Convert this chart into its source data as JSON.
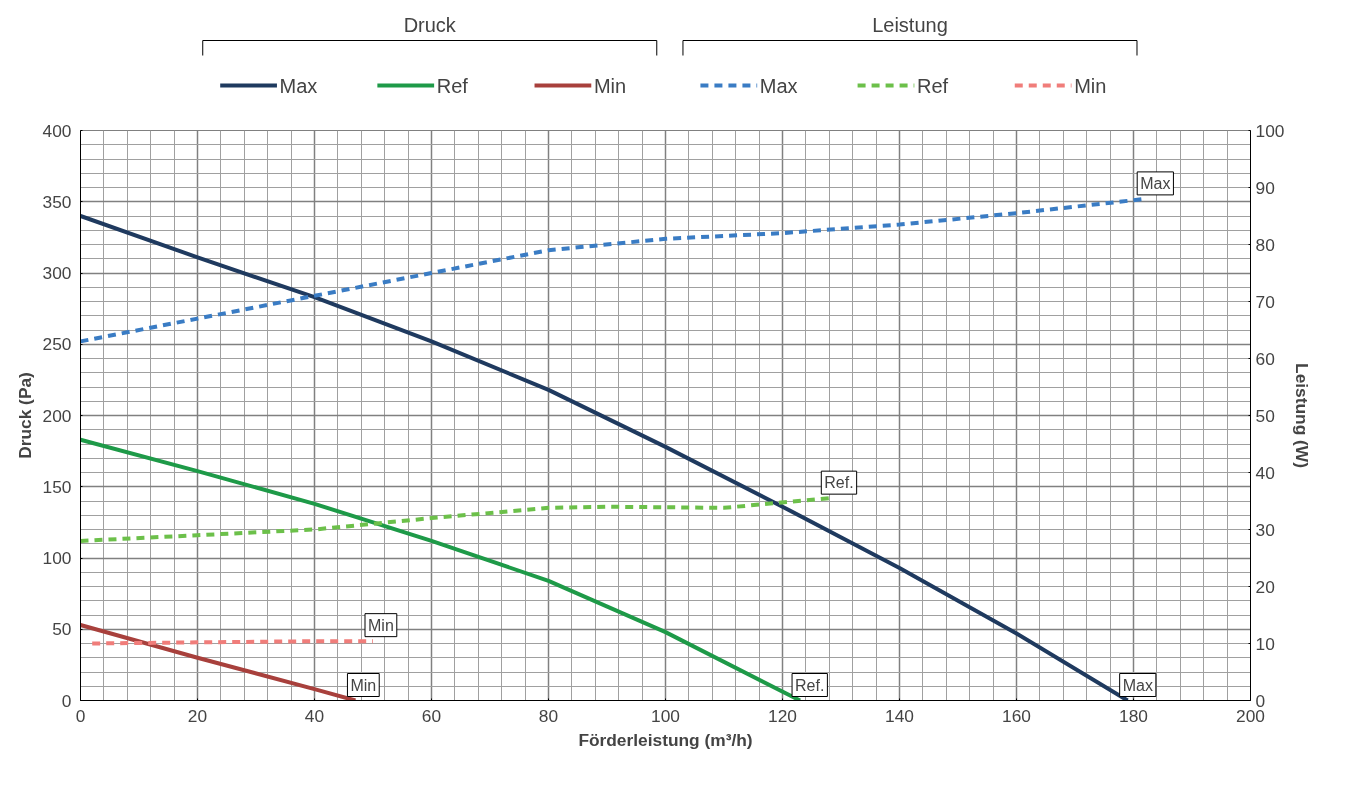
{
  "chart_data": {
    "type": "line",
    "xlabel": "Förderleistung (m³/h)",
    "ylabel": "Druck (Pa)",
    "y2label": "Leistung (W)",
    "xlim": [
      0,
      200
    ],
    "xticks": [
      0,
      20,
      40,
      60,
      80,
      100,
      120,
      140,
      160,
      180,
      200
    ],
    "ylim": [
      0,
      400
    ],
    "yticks": [
      0,
      50,
      100,
      150,
      200,
      250,
      300,
      350,
      400
    ],
    "y2lim": [
      0,
      100
    ],
    "y2ticks": [
      0,
      10,
      20,
      30,
      40,
      50,
      60,
      70,
      80,
      90,
      100
    ],
    "grid": true,
    "legend": "top",
    "marker": "none",
    "annotations": [
      "Druck",
      "Leistung",
      {
        "text": "Max",
        "x": 182,
        "y": 352
      },
      {
        "text": "Ref.",
        "x": 128,
        "y": 142
      },
      {
        "text": "Min",
        "x": 50,
        "y": 42
      },
      {
        "text": "Min",
        "x": 47,
        "y": 0
      },
      {
        "text": "Ref.",
        "x": 123,
        "y": 0
      },
      {
        "text": "Max",
        "x": 179,
        "y": 0
      }
    ],
    "series": [
      {
        "name": "Max",
        "color": "#1f3a5f",
        "line_style": "solid",
        "x": [
          0,
          20,
          40,
          60,
          80,
          100,
          120,
          140,
          160,
          179
        ],
        "values": [
          340,
          311,
          283,
          252,
          218,
          178,
          136,
          93,
          47,
          0
        ]
      },
      {
        "name": "Ref",
        "color": "#1e9a48",
        "line_style": "solid",
        "x": [
          0,
          20,
          40,
          60,
          80,
          100,
          123
        ],
        "values": [
          183,
          161,
          138,
          112,
          84,
          48,
          0
        ]
      },
      {
        "name": "Min",
        "color": "#a8403c",
        "line_style": "solid",
        "x": [
          0,
          20,
          40,
          47
        ],
        "values": [
          53,
          30,
          8,
          0
        ]
      },
      {
        "name": "Max",
        "color": "#3a7cc4",
        "line_style": "dashed",
        "axis": "y2",
        "x": [
          0,
          20,
          40,
          60,
          80,
          100,
          120,
          140,
          160,
          182
        ],
        "values": [
          63,
          67,
          71,
          75,
          79,
          81,
          82,
          83.5,
          85.5,
          88
        ]
      },
      {
        "name": "Ref",
        "color": "#6cc04a",
        "line_style": "dashed",
        "axis": "y2",
        "x": [
          0,
          20,
          40,
          60,
          80,
          90,
          110,
          128
        ],
        "values": [
          28,
          29,
          30,
          32,
          33.8,
          34,
          33.8,
          35.5
        ]
      },
      {
        "name": "Min",
        "color": "#f07d7a",
        "line_style": "dashed",
        "axis": "y2",
        "x": [
          2,
          20,
          40,
          50
        ],
        "values": [
          10,
          10.2,
          10.4,
          10.4
        ]
      }
    ]
  }
}
